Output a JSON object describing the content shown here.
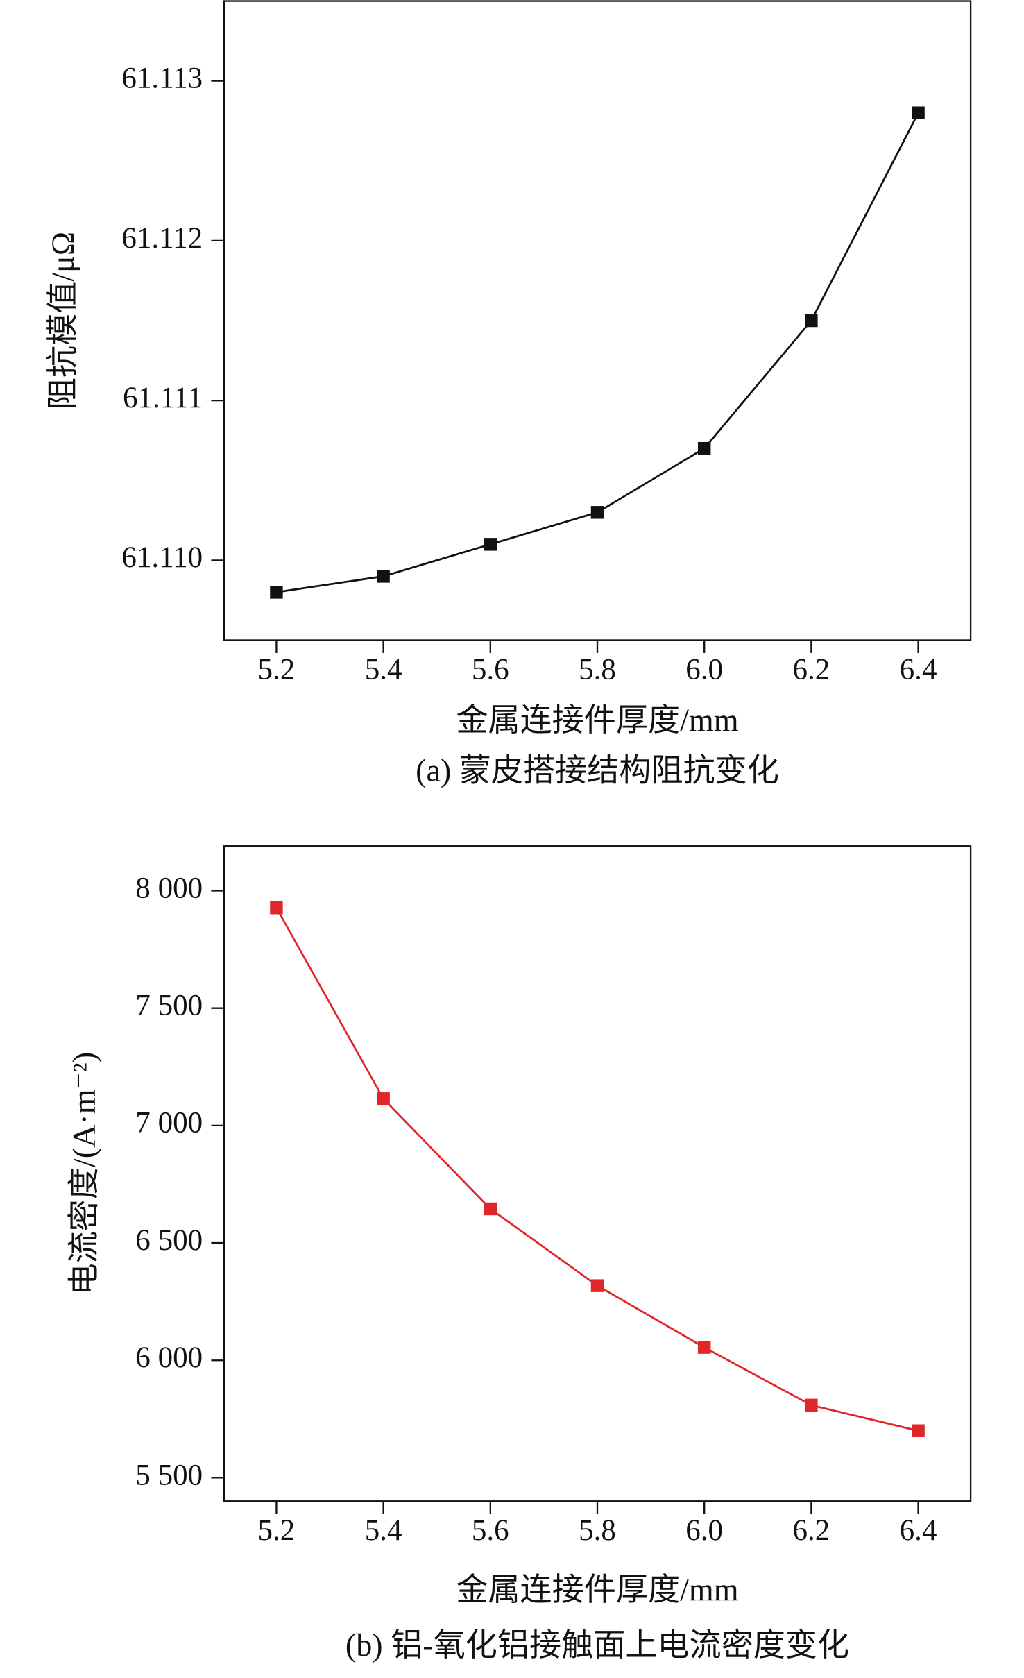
{
  "chart_data": [
    {
      "type": "line",
      "title": "(a) 蒙皮搭接结构阻抗变化",
      "x_label": "金属连接件厚度/mm",
      "y_label": "阻抗模值/μΩ",
      "x": [
        5.2,
        5.4,
        5.6,
        5.8,
        6.0,
        6.2,
        6.4
      ],
      "values": [
        61.1098,
        61.1099,
        61.1101,
        61.1103,
        61.1107,
        61.1115,
        61.1128
      ],
      "color": "#111111",
      "xlim": [
        5.102,
        6.498
      ],
      "xticks": [
        5.2,
        5.4,
        5.6,
        5.8,
        {
          "value": 6.0,
          "label": "6.0"
        },
        6.2,
        6.4
      ],
      "ylim": [
        61.1095,
        61.1135
      ],
      "yticks": [
        {
          "value": 61.11,
          "label": "61.110"
        },
        61.111,
        61.112,
        61.113
      ]
    },
    {
      "type": "line",
      "title": "(b) 铝-氧化铝接触面上电流密度变化",
      "x_label": "金属连接件厚度/mm",
      "y_label": "电流密度/(A·m⁻²)",
      "x": [
        5.2,
        5.4,
        5.6,
        5.8,
        6.0,
        6.2,
        6.4
      ],
      "values": [
        7927,
        7114,
        6645,
        6318,
        6055,
        5809,
        5700
      ],
      "color": "#e0262b",
      "xlim": [
        5.102,
        6.498
      ],
      "xticks": [
        5.2,
        5.4,
        5.6,
        5.8,
        {
          "value": 6.0,
          "label": "6.0"
        },
        6.2,
        6.4
      ],
      "ylim": [
        5400,
        8190
      ],
      "yticks": [
        {
          "value": 5500,
          "label": "5 500"
        },
        {
          "value": 6000,
          "label": "6 000"
        },
        {
          "value": 6500,
          "label": "6 500"
        },
        {
          "value": 7000,
          "label": "7 000"
        },
        {
          "value": 7500,
          "label": "7 500"
        },
        {
          "value": 8000,
          "label": "8 000"
        }
      ]
    }
  ]
}
